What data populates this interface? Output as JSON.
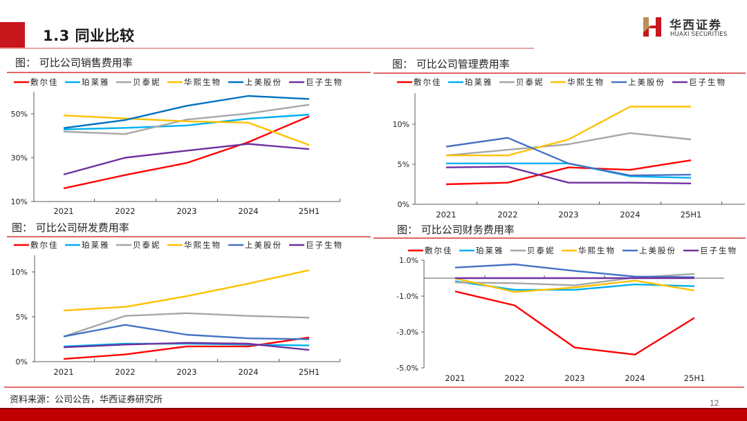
{
  "header": {
    "title": "1.3 同业比较",
    "logo_cn": "华西证券",
    "logo_en": "HUAXI SECURITIES"
  },
  "colors": {
    "brand_red": "#c8161d",
    "series": {
      "敷尔佳": "#ff0000",
      "珀莱雅": "#00b0f0",
      "贝泰妮": "#a6a6a6",
      "华熙生物": "#ffc000",
      "上美股份": "#0070c0",
      "巨子生物": "#7030a0"
    }
  },
  "footer": {
    "source": "资料来源：公司公告，华西证券研究所",
    "page_number": "12"
  },
  "chart_data": [
    {
      "id": "selling",
      "type": "line",
      "title": "图：  可比公司销售费用率",
      "categories": [
        "2021",
        "2022",
        "2023",
        "2024",
        "25H1"
      ],
      "ylim": [
        10,
        58
      ],
      "yticks": [
        10,
        30,
        50
      ],
      "ytick_labels": [
        "10%",
        "30%",
        "50%"
      ],
      "legend": "top",
      "series": [
        {
          "name": "敷尔佳",
          "color": "#ff0000",
          "values": [
            16.0,
            22.1,
            27.6,
            37.1,
            48.9
          ]
        },
        {
          "name": "珀莱雅",
          "color": "#00b0f0",
          "values": [
            42.9,
            43.6,
            44.7,
            47.8,
            49.7
          ]
        },
        {
          "name": "贝泰妮",
          "color": "#a6a6a6",
          "values": [
            41.9,
            40.8,
            47.4,
            50.2,
            54.2
          ]
        },
        {
          "name": "华熙生物",
          "color": "#ffc000",
          "values": [
            49.3,
            47.9,
            46.6,
            46.0,
            35.8
          ]
        },
        {
          "name": "上美股份",
          "color": "#0070c0",
          "values": [
            43.5,
            47.2,
            53.7,
            58.2,
            56.8
          ]
        },
        {
          "name": "巨子生物",
          "color": "#7030a0",
          "values": [
            22.3,
            30.0,
            33.2,
            36.3,
            33.9
          ]
        }
      ]
    },
    {
      "id": "admin",
      "type": "line",
      "title": "图：  可比公司管理费用率",
      "categories": [
        "2021",
        "2022",
        "2023",
        "2024",
        "25H1"
      ],
      "ylim": [
        0,
        14
      ],
      "yticks": [
        0,
        5,
        10
      ],
      "ytick_labels": [
        "0%",
        "5%",
        "10%"
      ],
      "legend": "top",
      "series": [
        {
          "name": "敷尔佳",
          "color": "#ff0000",
          "values": [
            2.5,
            2.7,
            4.6,
            4.3,
            5.5
          ]
        },
        {
          "name": "珀莱雅",
          "color": "#00b0f0",
          "values": [
            5.1,
            5.1,
            5.1,
            3.5,
            3.3
          ]
        },
        {
          "name": "贝泰妮",
          "color": "#a6a6a6",
          "values": [
            6.1,
            6.8,
            7.5,
            8.9,
            8.1
          ]
        },
        {
          "name": "华熙生物",
          "color": "#ffc000",
          "values": [
            6.1,
            6.1,
            8.1,
            12.2,
            12.2
          ]
        },
        {
          "name": "上美股份",
          "color": "#4472c4",
          "values": [
            7.2,
            8.3,
            5.1,
            3.6,
            3.7
          ]
        },
        {
          "name": "巨子生物",
          "color": "#7030a0",
          "values": [
            4.6,
            4.7,
            2.7,
            2.7,
            2.6
          ]
        }
      ]
    },
    {
      "id": "rnd",
      "type": "line",
      "title": "图：  可比公司研发费用率",
      "categories": [
        "2021",
        "2022",
        "2023",
        "2024",
        "25H1"
      ],
      "ylim": [
        0,
        12
      ],
      "yticks": [
        0,
        5,
        10
      ],
      "ytick_labels": [
        "0%",
        "5%",
        "10%"
      ],
      "legend": "top",
      "series": [
        {
          "name": "敷尔佳",
          "color": "#ff0000",
          "values": [
            0.3,
            0.8,
            1.7,
            1.7,
            2.7
          ]
        },
        {
          "name": "珀莱雅",
          "color": "#00b0f0",
          "values": [
            1.7,
            2.0,
            2.0,
            1.9,
            1.8
          ]
        },
        {
          "name": "贝泰妮",
          "color": "#a6a6a6",
          "values": [
            2.8,
            5.1,
            5.4,
            5.1,
            4.9
          ]
        },
        {
          "name": "华熙生物",
          "color": "#ffc000",
          "values": [
            5.7,
            6.1,
            7.3,
            8.7,
            10.2
          ]
        },
        {
          "name": "上美股份",
          "color": "#4472c4",
          "values": [
            2.8,
            4.1,
            3.0,
            2.6,
            2.5
          ]
        },
        {
          "name": "巨子生物",
          "color": "#7030a0",
          "values": [
            1.6,
            1.9,
            2.1,
            2.0,
            1.3
          ]
        }
      ]
    },
    {
      "id": "finance",
      "type": "line",
      "title": "图：  可比公司财务费用率",
      "categories": [
        "2021",
        "2022",
        "2023",
        "2024",
        "25H1"
      ],
      "ylim": [
        -5,
        1
      ],
      "yticks": [
        1,
        -1,
        -3,
        -5
      ],
      "ytick_labels": [
        "1.0%",
        "-1.0%",
        "-3.0%",
        "-5.0%"
      ],
      "legend": "top",
      "series": [
        {
          "name": "敷尔佳",
          "color": "#ff0000",
          "values": [
            -0.74,
            -1.52,
            -3.87,
            -4.26,
            -2.21
          ]
        },
        {
          "name": "珀莱雅",
          "color": "#00b0f0",
          "values": [
            -0.17,
            -0.65,
            -0.65,
            -0.35,
            -0.45
          ]
        },
        {
          "name": "贝泰妮",
          "color": "#a6a6a6",
          "values": [
            -0.24,
            -0.28,
            -0.4,
            0.03,
            0.24
          ]
        },
        {
          "name": "华熙生物",
          "color": "#ffc000",
          "values": [
            -0.01,
            -0.77,
            -0.52,
            -0.14,
            -0.69
          ]
        },
        {
          "name": "上美股份",
          "color": "#4472c4",
          "values": [
            0.59,
            0.77,
            0.4,
            0.09,
            0.05
          ]
        },
        {
          "name": "巨子生物",
          "color": "#7030a0",
          "values": [
            0.0,
            0.0,
            0.0,
            0.0,
            0.0
          ]
        }
      ]
    }
  ]
}
